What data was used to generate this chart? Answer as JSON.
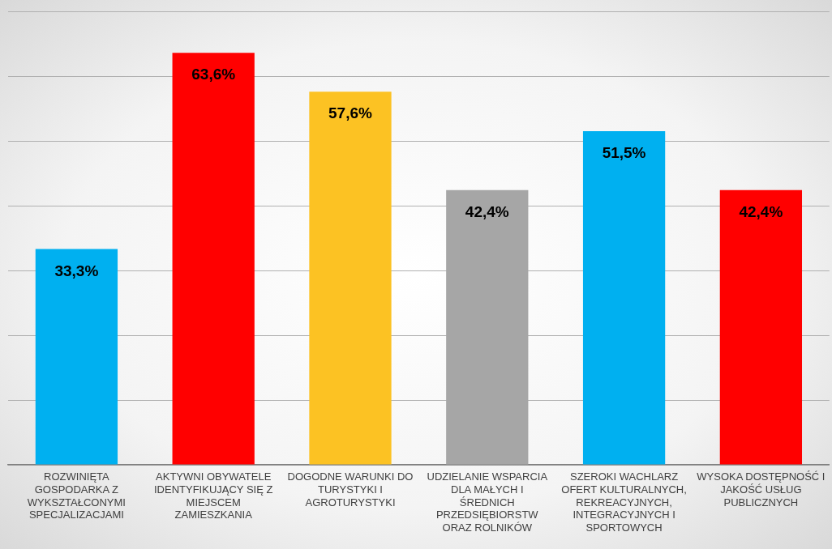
{
  "chart_data": {
    "type": "bar",
    "categories": [
      "ROZWINIĘTA GOSPODARKA Z WYKSZTAŁCONYMI SPECJALIZACJAMI",
      "AKTYWNI OBYWATELE IDENTYFIKUJĄCY SIĘ Z MIEJSCEM ZAMIESZKANIA",
      "DOGODNE WARUNKI DO TURYSTYKI I AGROTURYSTYKI",
      "UDZIELANIE WSPARCIA DLA MAŁYCH I ŚREDNICH PRZEDSIĘBIORSTW ORAZ ROLNIKÓW",
      "SZEROKI WACHLARZ OFERT KULTURALNYCH, REKREACYJNYCH, INTEGRACYJNYCH I SPORTOWYCH",
      "WYSOKA DOSTĘPNOŚĆ I JAKOŚĆ USŁUG PUBLICZNYCH"
    ],
    "values": [
      33.3,
      63.6,
      57.6,
      42.4,
      51.5,
      42.4
    ],
    "value_labels": [
      "33,3%",
      "63,6%",
      "57,6%",
      "42,4%",
      "51,5%",
      "42,4%"
    ],
    "colors": [
      "#00b0f0",
      "#ff0000",
      "#fcc223",
      "#a6a6a6",
      "#00b0f0",
      "#ff0000"
    ],
    "ylim": [
      0,
      70
    ],
    "yticks": [
      {
        "value": 0,
        "label": null
      },
      {
        "value": 10,
        "label": null
      },
      {
        "value": 20,
        "label": null
      },
      {
        "value": 30,
        "label": null
      },
      {
        "value": 40,
        "label": null
      },
      {
        "value": 50,
        "label": null
      },
      {
        "value": 60,
        "label": null
      },
      {
        "value": 70,
        "label": null
      }
    ],
    "tick_labels": "x",
    "grid": "y",
    "legend": false
  }
}
